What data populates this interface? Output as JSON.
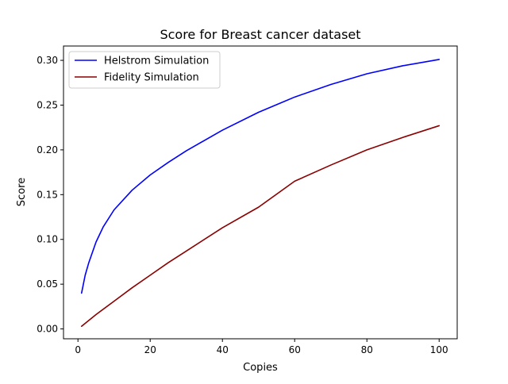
{
  "chart_data": {
    "type": "line",
    "title": "Score for Breast cancer dataset",
    "xlabel": "Copies",
    "ylabel": "Score",
    "xlim": [
      -4,
      105
    ],
    "ylim": [
      -0.011,
      0.316
    ],
    "xticks": [
      0,
      20,
      40,
      60,
      80,
      100
    ],
    "xtick_labels": [
      "0",
      "20",
      "40",
      "60",
      "80",
      "100"
    ],
    "yticks": [
      0.0,
      0.05,
      0.1,
      0.15,
      0.2,
      0.25,
      0.3
    ],
    "ytick_labels": [
      "0.00",
      "0.05",
      "0.10",
      "0.15",
      "0.20",
      "0.25",
      "0.30"
    ],
    "grid": false,
    "legend_position": "upper-left",
    "series": [
      {
        "name": "Helstrom Simulation",
        "color": "#0000ff",
        "x": [
          1,
          2,
          3,
          5,
          7,
          10,
          15,
          20,
          25,
          30,
          40,
          50,
          60,
          70,
          80,
          90,
          100
        ],
        "y": [
          0.04,
          0.06,
          0.074,
          0.097,
          0.114,
          0.133,
          0.155,
          0.172,
          0.186,
          0.199,
          0.222,
          0.242,
          0.259,
          0.273,
          0.285,
          0.294,
          0.301
        ]
      },
      {
        "name": "Fidelity Simulation",
        "color": "#8b0000",
        "x": [
          1,
          5,
          10,
          15,
          20,
          25,
          30,
          40,
          50,
          60,
          70,
          80,
          90,
          100
        ],
        "y": [
          0.003,
          0.016,
          0.031,
          0.046,
          0.06,
          0.074,
          0.087,
          0.113,
          0.136,
          0.165,
          0.183,
          0.2,
          0.214,
          0.227
        ]
      }
    ]
  }
}
